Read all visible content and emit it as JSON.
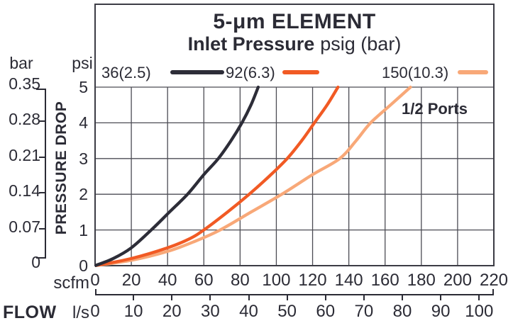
{
  "colors": {
    "ink": "#2b2b35",
    "border": "#3c3c45",
    "grid": "#4c4c54",
    "series_36": "#2d2d38",
    "series_92": "#f15a24",
    "series_150": "#f8a878"
  },
  "chart_data": {
    "type": "line",
    "title": "5-μm ELEMENT",
    "subtitle_bold": "Inlet Pressure",
    "subtitle_rest": "psig (bar)",
    "annotation": "1/2 Ports",
    "xlabel": "FLOW",
    "ylabel": "PRESSURE DROP",
    "grid": true,
    "legend_position": "top",
    "x_units": [
      {
        "name": "scfm",
        "ticks": [
          0,
          20,
          40,
          60,
          80,
          100,
          120,
          140,
          160,
          180,
          200,
          220
        ],
        "range": [
          0,
          220
        ]
      },
      {
        "name": "l/s",
        "ticks": [
          0,
          10,
          20,
          30,
          40,
          50,
          60,
          70,
          80,
          90,
          100
        ],
        "scfm_per_unit": 2.1189
      }
    ],
    "y_units": [
      {
        "name": "bar",
        "ticks": [
          "0.35",
          "0.28",
          "0.21",
          "0.14",
          "0.07",
          "0"
        ]
      },
      {
        "name": "psi",
        "ticks": [
          5,
          4,
          3,
          2,
          1,
          0
        ],
        "range": [
          0,
          5
        ]
      }
    ],
    "series": [
      {
        "name": "36(2.5)",
        "color": "#2d2d38",
        "points_scfm_psi": [
          [
            0,
            0
          ],
          [
            10,
            0.2
          ],
          [
            20,
            0.5
          ],
          [
            31,
            1
          ],
          [
            41,
            1.5
          ],
          [
            51,
            2
          ],
          [
            60,
            2.55
          ],
          [
            68,
            3
          ],
          [
            75,
            3.5
          ],
          [
            81,
            4
          ],
          [
            86,
            4.5
          ],
          [
            90,
            5
          ]
        ]
      },
      {
        "name": "92(6.3)",
        "color": "#f15a24",
        "points_scfm_psi": [
          [
            0,
            0
          ],
          [
            20,
            0.2
          ],
          [
            40,
            0.5
          ],
          [
            52,
            0.75
          ],
          [
            60,
            1
          ],
          [
            73,
            1.5
          ],
          [
            85,
            2
          ],
          [
            96,
            2.5
          ],
          [
            106,
            3
          ],
          [
            114,
            3.5
          ],
          [
            121,
            4
          ],
          [
            128,
            4.5
          ],
          [
            134,
            5
          ]
        ]
      },
      {
        "name": "150(10.3)",
        "color": "#f8a878",
        "points_scfm_psi": [
          [
            0,
            0
          ],
          [
            20,
            0.15
          ],
          [
            40,
            0.4
          ],
          [
            55,
            0.68
          ],
          [
            69,
            1
          ],
          [
            86,
            1.5
          ],
          [
            103,
            2
          ],
          [
            120,
            2.55
          ],
          [
            135,
            3
          ],
          [
            144,
            3.5
          ],
          [
            152,
            4
          ],
          [
            163,
            4.5
          ],
          [
            174,
            5
          ]
        ]
      }
    ]
  }
}
